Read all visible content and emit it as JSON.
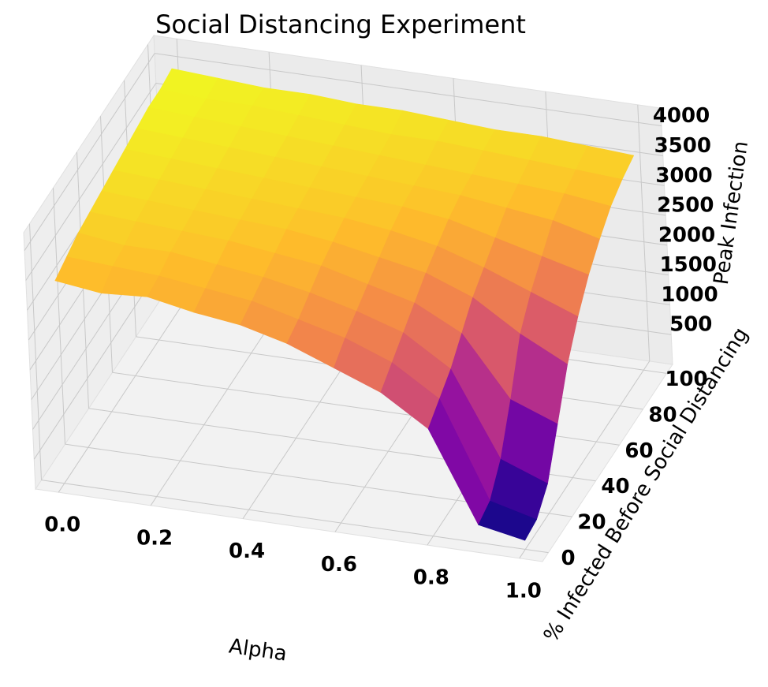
{
  "chart_data": {
    "type": "surface3d",
    "title": "Social Distancing Experiment",
    "xlabel": "Alpha",
    "ylabel": "% Infected Before Social Distancing",
    "zlabel": "Peak Infection",
    "colormap": "plasma",
    "x": [
      0,
      0.1,
      0.2,
      0.3,
      0.4,
      0.5,
      0.6,
      0.7,
      0.8,
      0.9,
      1
    ],
    "y": [
      0,
      10,
      20,
      30,
      40,
      50,
      60,
      70,
      80,
      90,
      100
    ],
    "z": [
      [
        3400,
        3300,
        3350,
        3200,
        3100,
        2900,
        2600,
        2300,
        1800,
        300,
        150
      ],
      [
        3500,
        3450,
        3400,
        3300,
        3200,
        3000,
        2800,
        2500,
        2000,
        400,
        200
      ],
      [
        3600,
        3500,
        3500,
        3400,
        3300,
        3150,
        2950,
        2700,
        2200,
        800,
        500
      ],
      [
        3650,
        3600,
        3550,
        3500,
        3400,
        3300,
        3100,
        2900,
        2500,
        1500,
        1200
      ],
      [
        3700,
        3650,
        3600,
        3550,
        3500,
        3400,
        3250,
        3100,
        2800,
        2300,
        1900
      ],
      [
        3750,
        3700,
        3650,
        3600,
        3550,
        3500,
        3400,
        3250,
        3000,
        2700,
        2400
      ],
      [
        3800,
        3750,
        3700,
        3650,
        3600,
        3550,
        3500,
        3400,
        3200,
        3000,
        2800
      ],
      [
        3850,
        3800,
        3750,
        3700,
        3650,
        3600,
        3550,
        3500,
        3400,
        3300,
        3100
      ],
      [
        3900,
        3850,
        3800,
        3750,
        3700,
        3650,
        3600,
        3550,
        3500,
        3450,
        3350
      ],
      [
        3900,
        3850,
        3850,
        3800,
        3750,
        3700,
        3700,
        3650,
        3600,
        3550,
        3500
      ],
      [
        3950,
        3900,
        3850,
        3850,
        3800,
        3800,
        3750,
        3700,
        3700,
        3650,
        3600
      ]
    ],
    "xlim": [
      -0.05,
      1.05
    ],
    "ylim": [
      -5,
      105
    ],
    "zlim": [
      0,
      4300
    ],
    "xticks": [
      {
        "value": 0,
        "label": "0.0"
      },
      0.2,
      0.4,
      0.6,
      0.8,
      {
        "value": 1,
        "label": "1.0"
      }
    ],
    "yticks": [
      0,
      20,
      40,
      60,
      80,
      100
    ],
    "zticks": [
      500,
      1000,
      1500,
      2000,
      2500,
      3000,
      3500,
      4000
    ],
    "grid": true
  }
}
